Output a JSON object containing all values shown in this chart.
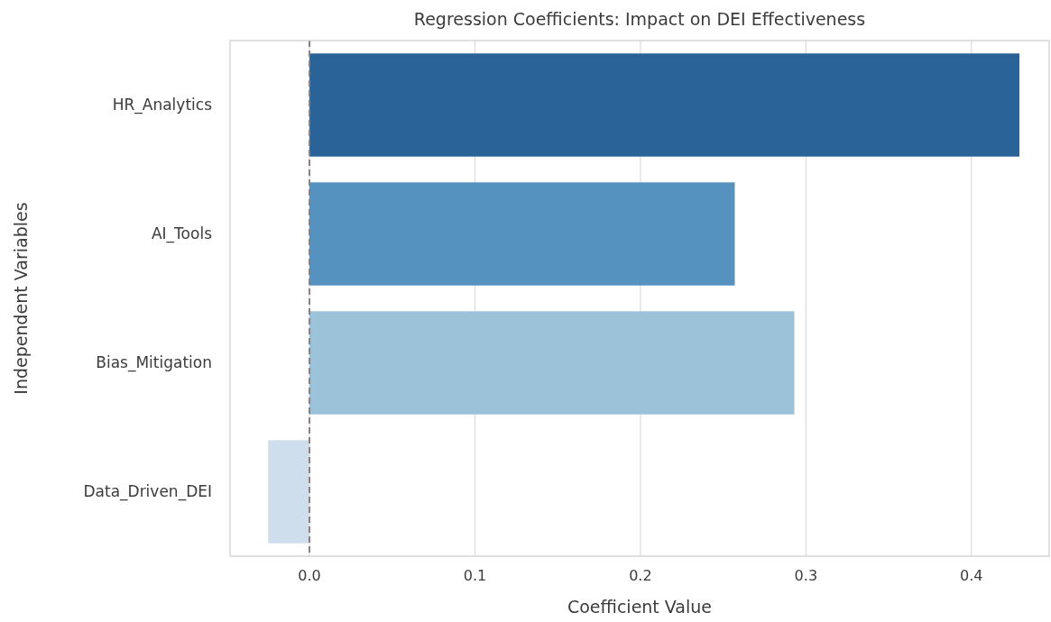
{
  "chart_data": {
    "type": "bar",
    "orientation": "horizontal",
    "title": "Regression Coefficients: Impact on DEI Effectiveness",
    "xlabel": "Coefficient Value",
    "ylabel": "Independent Variables",
    "categories": [
      "HR_Analytics",
      "AI_Tools",
      "Bias_Mitigation",
      "Data_Driven_DEI"
    ],
    "values": [
      0.429,
      0.257,
      0.293,
      -0.025
    ],
    "colors": [
      "#2a6398",
      "#5592bf",
      "#9cc2d9",
      "#cfdeec"
    ],
    "xlim": [
      -0.048,
      0.447
    ],
    "xticks": [
      {
        "value": 0,
        "label": "0.0"
      },
      0.1,
      0.2,
      0.3,
      0.4
    ],
    "grid": "x",
    "ref_lines": [
      {
        "axis": "x",
        "value": 0,
        "color": "#8a7f7f",
        "line_style": "dashed"
      }
    ]
  }
}
